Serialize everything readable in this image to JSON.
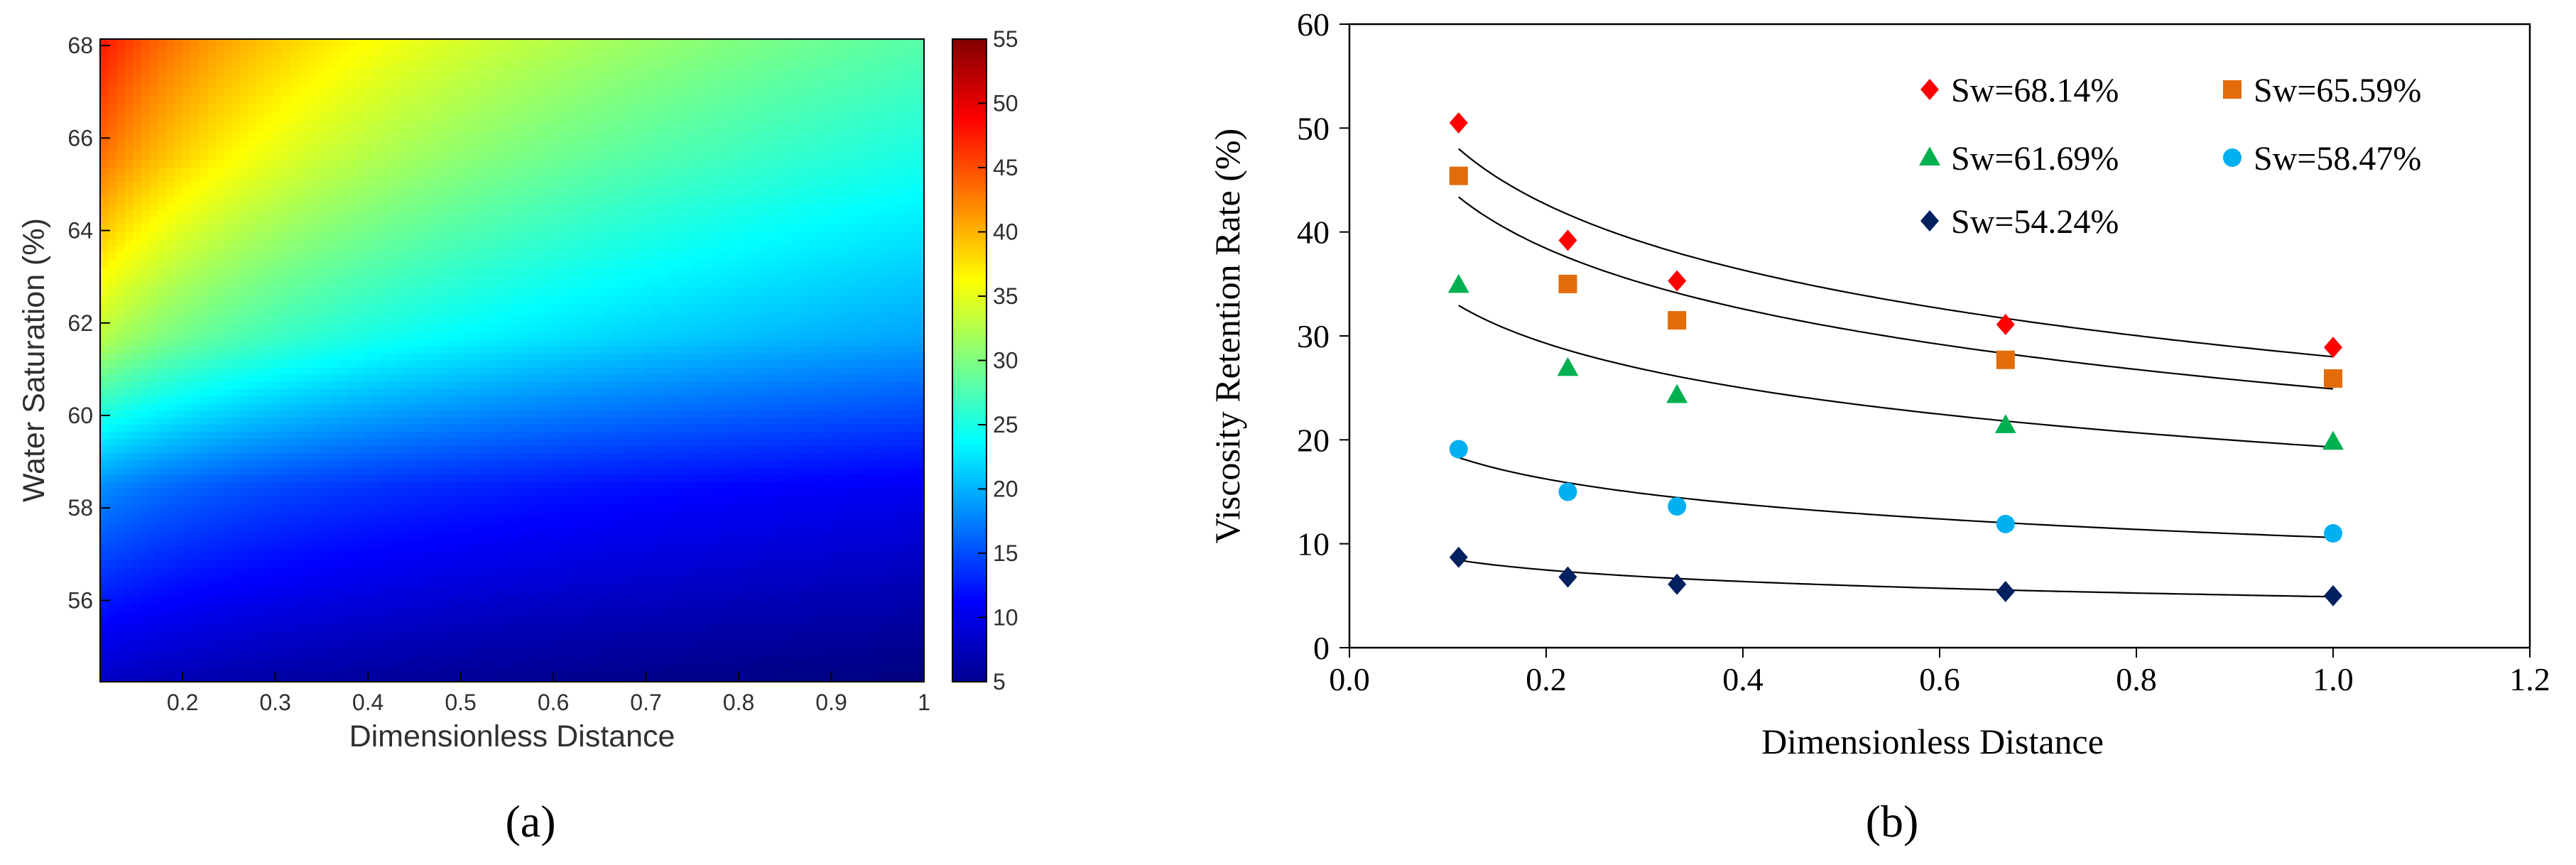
{
  "panel_a": {
    "caption": "(a)",
    "xlabel": "Dimensionless Distance",
    "ylabel": "Water Saturation (%)",
    "xticks": [
      "0.2",
      "0.3",
      "0.4",
      "0.5",
      "0.6",
      "0.7",
      "0.8",
      "0.9",
      "1"
    ],
    "yticks": [
      "56",
      "58",
      "60",
      "62",
      "64",
      "66",
      "68"
    ],
    "colorbar_ticks": [
      "5",
      "10",
      "15",
      "20",
      "25",
      "30",
      "35",
      "40",
      "45",
      "50",
      "55"
    ]
  },
  "panel_b": {
    "caption": "(b)",
    "xlabel": "Dimensionless Distance",
    "ylabel": "Viscosity Retention Rate (%)",
    "xticks": [
      "0.0",
      "0.2",
      "0.4",
      "0.6",
      "0.8",
      "1.0",
      "1.2"
    ],
    "yticks": [
      "0",
      "10",
      "20",
      "30",
      "40",
      "50",
      "60"
    ]
  },
  "chart_data": [
    {
      "type": "heatmap",
      "title": "",
      "xlabel": "Dimensionless Distance",
      "ylabel": "Water Saturation (%)",
      "xlim": [
        0.111,
        1
      ],
      "ylim": [
        54.24,
        68.14
      ],
      "colorbar": {
        "range": [
          5,
          55
        ],
        "colormap": "jet"
      },
      "corner_values": {
        "x0.111_y68.14": 52,
        "x0.111_y54.24": 8,
        "x1_y68.14": 29,
        "x1_y54.24": 5
      }
    },
    {
      "type": "scatter",
      "title": "",
      "xlabel": "Dimensionless Distance",
      "ylabel": "Viscosity Retention Rate (%)",
      "xlim": [
        0,
        1.2
      ],
      "ylim": [
        0,
        60
      ],
      "grid": false,
      "legend": "top-right",
      "x": [
        0.111,
        0.222,
        0.333,
        0.667,
        1.0
      ],
      "series": [
        {
          "name": "Sw=68.14%",
          "marker": "diamond",
          "color": "#ff0000",
          "values": [
            50.5,
            39.2,
            35.3,
            31.1,
            28.9
          ],
          "fit": {
            "a": 28.0,
            "b": -9.1
          }
        },
        {
          "name": "Sw=65.59%",
          "marker": "square",
          "color": "#e36c0a",
          "values": [
            45.4,
            35.0,
            31.5,
            27.7,
            25.9
          ],
          "fit": {
            "a": 24.9,
            "b": -8.4
          }
        },
        {
          "name": "Sw=61.69%",
          "marker": "triangle",
          "color": "#00b050",
          "values": [
            34.9,
            26.9,
            24.3,
            21.4,
            19.8
          ],
          "fit": {
            "a": 19.3,
            "b": -6.2
          }
        },
        {
          "name": "Sw=58.47%",
          "marker": "circle",
          "color": "#00b0f0",
          "values": [
            19.1,
            15.0,
            13.6,
            11.9,
            11.0
          ],
          "fit": {
            "a": 10.6,
            "b": -3.5
          }
        },
        {
          "name": "Sw=54.24%",
          "marker": "diamond",
          "color": "#002060",
          "values": [
            8.7,
            6.8,
            6.1,
            5.4,
            5.0
          ],
          "fit": {
            "a": 4.9,
            "b": -1.6
          }
        }
      ]
    }
  ]
}
